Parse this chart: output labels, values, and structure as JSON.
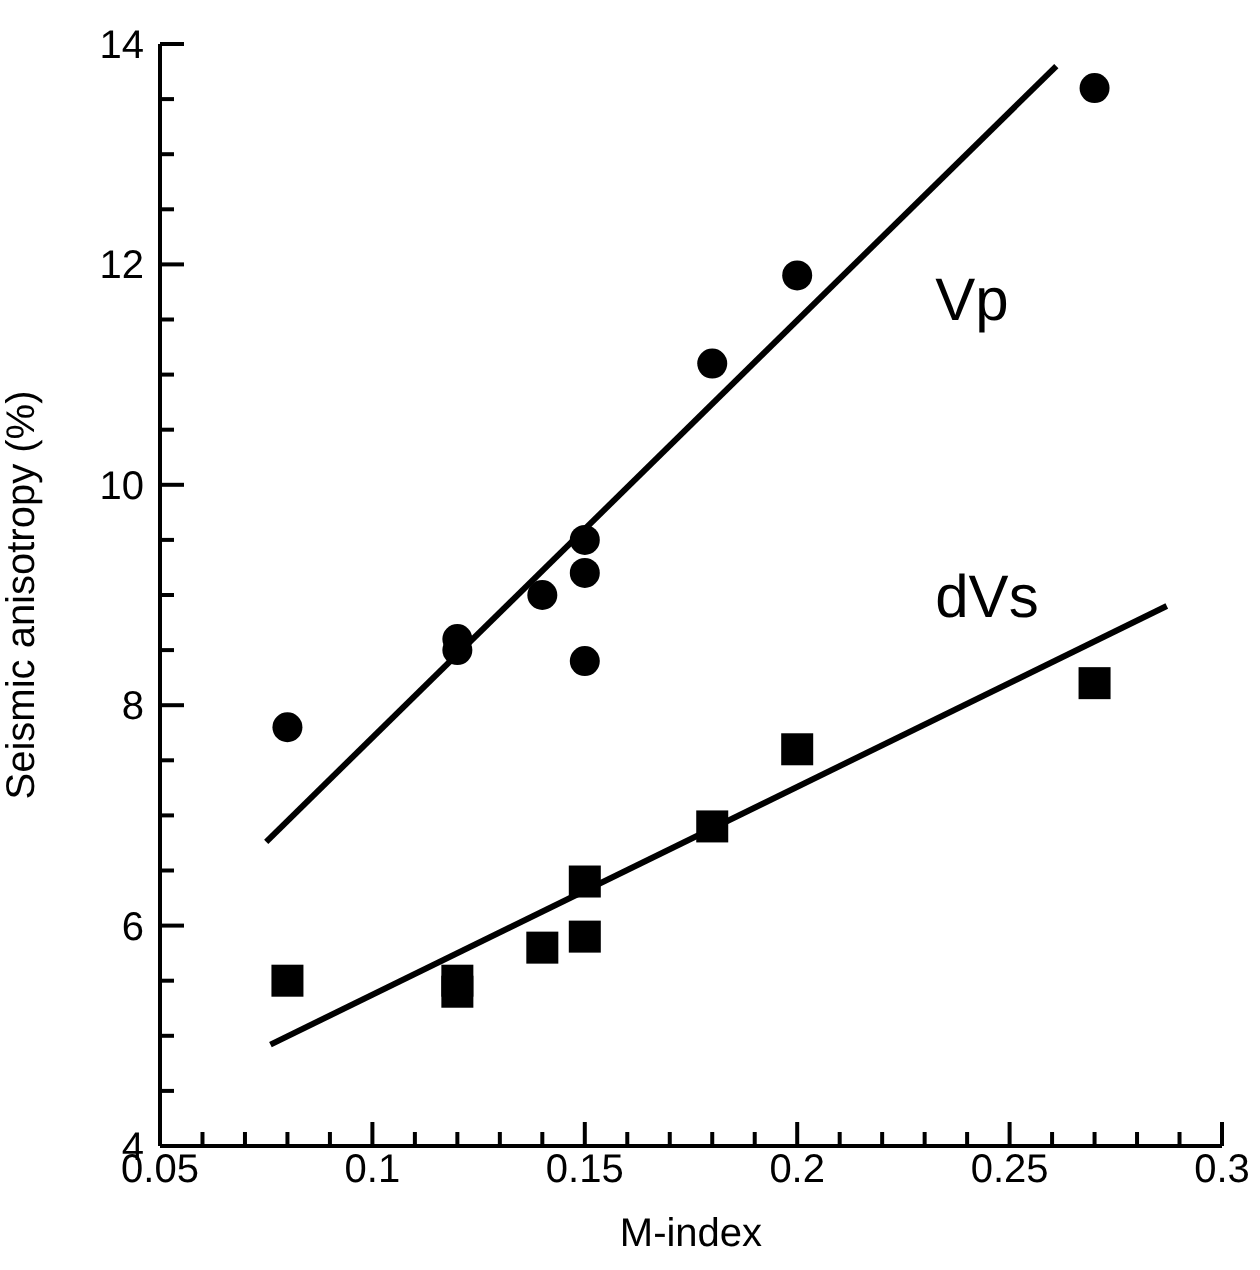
{
  "chart_data": {
    "type": "scatter",
    "xlabel": "M-index",
    "ylabel": "Seismic anisotropy (%)",
    "xlim": [
      0.05,
      0.3
    ],
    "ylim": [
      4,
      14
    ],
    "xticks": [
      0.05,
      {
        "value": 0.06,
        "label": null
      },
      {
        "value": 0.07,
        "label": null
      },
      {
        "value": 0.08,
        "label": null
      },
      {
        "value": 0.09,
        "label": null
      },
      0.1,
      {
        "value": 0.11,
        "label": null
      },
      {
        "value": 0.12,
        "label": null
      },
      {
        "value": 0.13,
        "label": null
      },
      {
        "value": 0.14,
        "label": null
      },
      0.15,
      {
        "value": 0.16,
        "label": null
      },
      {
        "value": 0.17,
        "label": null
      },
      {
        "value": 0.18,
        "label": null
      },
      {
        "value": 0.19,
        "label": null
      },
      0.2,
      {
        "value": 0.21,
        "label": null
      },
      {
        "value": 0.22,
        "label": null
      },
      {
        "value": 0.23,
        "label": null
      },
      {
        "value": 0.24,
        "label": null
      },
      0.25,
      {
        "value": 0.26,
        "label": null
      },
      {
        "value": 0.27,
        "label": null
      },
      {
        "value": 0.28,
        "label": null
      },
      {
        "value": 0.29,
        "label": null
      },
      0.3
    ],
    "yticks": [
      4,
      {
        "value": 4.5,
        "label": null
      },
      {
        "value": 5,
        "label": null
      },
      {
        "value": 5.5,
        "label": null
      },
      6,
      {
        "value": 6.5,
        "label": null
      },
      {
        "value": 7,
        "label": null
      },
      {
        "value": 7.5,
        "label": null
      },
      8,
      {
        "value": 8.5,
        "label": null
      },
      {
        "value": 9,
        "label": null
      },
      {
        "value": 9.5,
        "label": null
      },
      10,
      {
        "value": 10.5,
        "label": null
      },
      {
        "value": 11,
        "label": null
      },
      {
        "value": 11.5,
        "label": null
      },
      12,
      {
        "value": 12.5,
        "label": null
      },
      {
        "value": 13,
        "label": null
      },
      {
        "value": 13.5,
        "label": null
      },
      14
    ],
    "grid": false,
    "legend": false,
    "series": [
      {
        "name": "Vp",
        "type": "scatter",
        "marker": "circle",
        "color": "#000000",
        "x": [
          0.08,
          0.12,
          0.12,
          0.14,
          0.15,
          0.15,
          0.15,
          0.18,
          0.2,
          0.27
        ],
        "values": [
          7.8,
          8.6,
          8.5,
          9.0,
          9.5,
          9.2,
          8.4,
          11.1,
          11.9,
          13.6
        ]
      },
      {
        "name": "dVs",
        "type": "scatter",
        "marker": "square",
        "color": "#000000",
        "x": [
          0.08,
          0.12,
          0.12,
          0.14,
          0.15,
          0.15,
          0.18,
          0.2,
          0.27
        ],
        "values": [
          5.5,
          5.5,
          5.4,
          5.8,
          6.4,
          5.9,
          6.9,
          7.6,
          8.2
        ]
      },
      {
        "type": "line",
        "color": "#000000",
        "x": [
          0.075,
          0.261
        ],
        "values": [
          6.76,
          13.8
        ]
      },
      {
        "type": "line",
        "color": "#000000",
        "x": [
          0.076,
          0.287
        ],
        "values": [
          4.92,
          8.9
        ]
      }
    ]
  }
}
